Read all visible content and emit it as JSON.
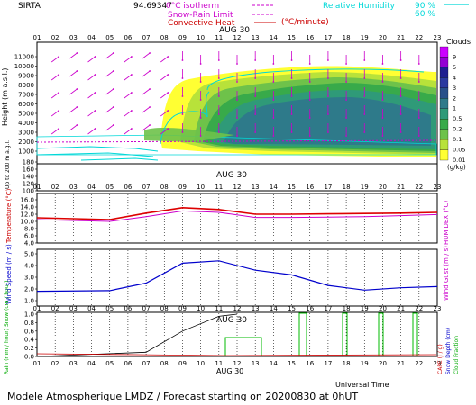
{
  "header": {
    "station": "SIRTA",
    "pos_value": "94.69347",
    "legend_isotherm": "0°C isotherm",
    "legend_snow": "Snow-Rain Limit",
    "legend_conv": "Convective Heat",
    "legend_conv_unit": "(°C/minute)",
    "legend_rh": "Relative Humidity",
    "rh_90": "90 %",
    "rh_60": "60 %"
  },
  "colors": {
    "magenta": "#cc00cc",
    "red": "#cc0000",
    "cyan": "#00d8d8",
    "blue": "#0000cc",
    "green": "#00bb00"
  },
  "hours": [
    "01",
    "02",
    "03",
    "04",
    "05",
    "06",
    "07",
    "08",
    "09",
    "10",
    "11",
    "12",
    "13",
    "14",
    "15",
    "16",
    "17",
    "18",
    "19",
    "20",
    "21",
    "22",
    "23"
  ],
  "date_label": "AUG 30",
  "cloud_panel": {
    "ylabel": "Height (m a.s.l.)",
    "ylabel_low": "Up to 200 m a.g.l.",
    "yticks_high": [
      "11000",
      "10000",
      "9000",
      "8000",
      "7000",
      "6000",
      "5000",
      "4000",
      "3000",
      "2000",
      "1000"
    ],
    "yticks_low": [
      "180",
      "160",
      "140",
      "120",
      "100"
    ],
    "cbar_title": "Clouds",
    "cbar_unit": "(g/kg)",
    "cbar_labels": [
      "9",
      "5",
      "4",
      "3",
      "2",
      "1",
      "0.5",
      "0.2",
      "0.1",
      "0.05",
      "0.01"
    ],
    "cbar_colors": [
      "#cc00ff",
      "#9400d3",
      "#1e1e90",
      "#2b3aa0",
      "#28508a",
      "#2e7a8a",
      "#2f9a78",
      "#38aa4a",
      "#6ec24a",
      "#b8e23a",
      "#ffff33"
    ]
  },
  "temp_panel": {
    "ylabel": "Temperature (°C)",
    "ylabel_right": "HUMIDEX (°C)",
    "yticks": [
      "16.0",
      "14.0",
      "12.0",
      "10.0",
      "8.0",
      "6.0",
      "4.0"
    ]
  },
  "wind_panel": {
    "ylabel": "Wind Speed (m / s)",
    "ylabel_right": "Wind Gust (m / s)",
    "yticks": [
      "5.0",
      "4.0",
      "3.0",
      "2.0",
      "1.0"
    ]
  },
  "rain_panel": {
    "ylabel": "Rain (mm / hour) Snow (cm / hour)",
    "ylabel_right_a": "Snow Depth (cm)",
    "ylabel_right_b": "Cloud Fraction",
    "ylabel_right_c": "CAPE (J / g)",
    "yticks": [
      "1.0",
      "0.8",
      "0.6",
      "0.4",
      "0.2",
      "0.0"
    ],
    "xlabel": "Universal Time"
  },
  "chart_data": [
    {
      "type": "line",
      "title": "",
      "x": [
        "01",
        "05",
        "07",
        "09",
        "11",
        "13",
        "15",
        "17",
        "19",
        "21",
        "23"
      ],
      "series": [
        {
          "name": "Temperature (°C)",
          "values": [
            11.0,
            10.5,
            12.3,
            13.8,
            13.3,
            12.0,
            12.0,
            12.1,
            12.2,
            12.3,
            12.5
          ]
        },
        {
          "name": "HUMIDEX (°C)",
          "values": [
            10.5,
            10.0,
            11.3,
            12.9,
            12.5,
            11.1,
            11.1,
            11.2,
            11.3,
            11.6,
            11.9
          ]
        }
      ],
      "ylim": [
        4,
        16
      ]
    },
    {
      "type": "line",
      "title": "",
      "x": [
        "01",
        "05",
        "07",
        "09",
        "11",
        "13",
        "15",
        "17",
        "19",
        "21",
        "23"
      ],
      "series": [
        {
          "name": "Wind Speed (m / s)",
          "values": [
            1.8,
            1.85,
            2.5,
            4.2,
            4.4,
            3.6,
            3.2,
            2.3,
            1.9,
            2.1,
            2.2
          ]
        }
      ],
      "ylim": [
        0,
        5
      ]
    },
    {
      "type": "line",
      "title": "",
      "x": [
        "01",
        "07",
        "09",
        "11",
        "12"
      ],
      "series": [
        {
          "name": "Cloud Fraction",
          "values": [
            0.0,
            0.1,
            0.6,
            0.95,
            1.0
          ]
        }
      ],
      "ylim": [
        0,
        1
      ]
    }
  ],
  "footer": {
    "title": "Modele Atmospherique LMDZ / Forecast starting on 20200830 at 0hUT"
  }
}
